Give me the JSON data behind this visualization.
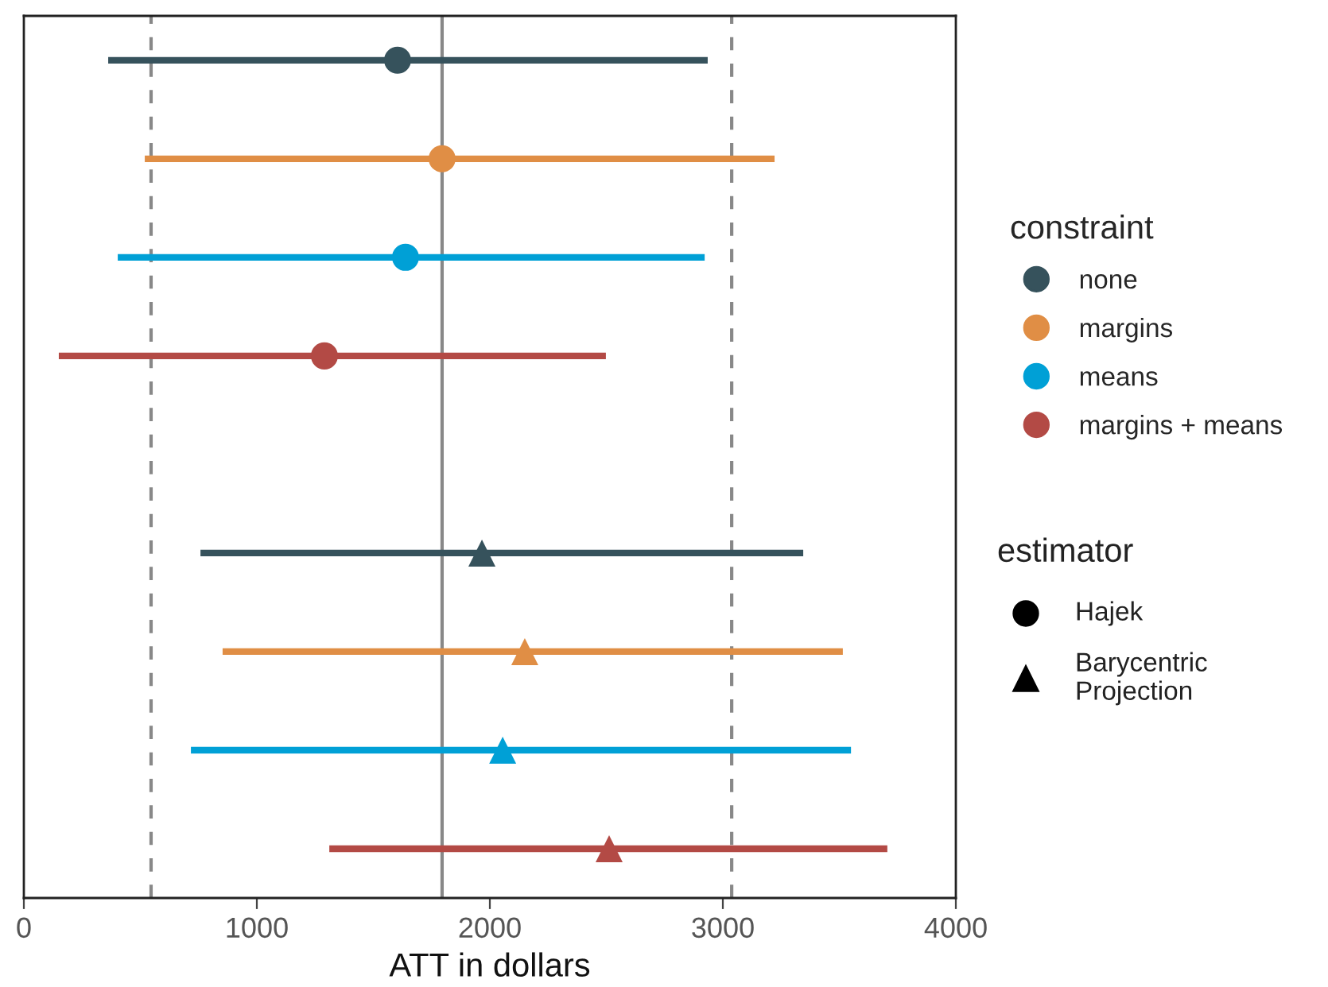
{
  "chart_data": {
    "type": "scatter",
    "orientation": "horizontal",
    "xlabel": "ATT in dollars",
    "categories": [
      null,
      null,
      null,
      null,
      null,
      null,
      null,
      null,
      null
    ],
    "legend_title": [
      "constraint",
      "estimator"
    ],
    "annotations": [
      "Hajek",
      "Barycentric\nProjection"
    ],
    "series": [
      {
        "name": "none",
        "marker": "circle",
        "color": "#36525c",
        "values": [
          1604,
          null,
          null,
          null,
          null,
          null,
          null,
          null,
          null
        ],
        "errors": [
          [
            362,
            2935
          ],
          null,
          null,
          null,
          null,
          null,
          null,
          null,
          null
        ]
      },
      {
        "name": "margins",
        "marker": "circle",
        "color": "#e08e45",
        "values": [
          null,
          1795,
          null,
          null,
          null,
          null,
          null,
          null,
          null
        ],
        "errors": [
          null,
          [
            519,
            3222
          ],
          null,
          null,
          null,
          null,
          null,
          null,
          null
        ]
      },
      {
        "name": "means",
        "marker": "circle",
        "color": "#00a0d6",
        "values": [
          null,
          null,
          1638,
          null,
          null,
          null,
          null,
          null,
          null
        ],
        "errors": [
          null,
          null,
          [
            403,
            2922
          ],
          null,
          null,
          null,
          null,
          null,
          null
        ]
      },
      {
        "name": "margins + means",
        "marker": "circle",
        "color": "#b34a45",
        "values": [
          null,
          null,
          null,
          1290,
          null,
          null,
          null,
          null,
          null
        ],
        "errors": [
          null,
          null,
          null,
          [
            150,
            2498
          ],
          null,
          null,
          null,
          null,
          null
        ]
      },
      {
        "marker": "triangle",
        "color": "#36525c",
        "values": [
          null,
          null,
          null,
          null,
          null,
          1966,
          null,
          null,
          null
        ],
        "errors": [
          null,
          null,
          null,
          null,
          null,
          [
            758,
            3345
          ],
          null,
          null,
          null
        ]
      },
      {
        "marker": "triangle",
        "color": "#e08e45",
        "values": [
          null,
          null,
          null,
          null,
          null,
          null,
          2150,
          null,
          null
        ],
        "errors": [
          null,
          null,
          null,
          null,
          null,
          null,
          [
            853,
            3515
          ],
          null,
          null
        ]
      },
      {
        "marker": "triangle",
        "color": "#00a0d6",
        "values": [
          null,
          null,
          null,
          null,
          null,
          null,
          null,
          2055,
          null
        ],
        "errors": [
          null,
          null,
          null,
          null,
          null,
          null,
          null,
          [
            717,
            3550
          ],
          null
        ]
      },
      {
        "marker": "triangle",
        "color": "#b34a45",
        "values": [
          null,
          null,
          null,
          null,
          null,
          null,
          null,
          null,
          2512
        ],
        "errors": [
          null,
          null,
          null,
          null,
          null,
          null,
          null,
          null,
          [
            1311,
            3706
          ]
        ]
      }
    ],
    "xlim": [
      0,
      4000
    ],
    "xticks": [
      0,
      1000,
      2000,
      3000,
      4000
    ],
    "ref_lines": [
      {
        "axis": "x",
        "value": 546,
        "color": "#888888",
        "line_style": "dashed"
      },
      {
        "axis": "x",
        "value": 1795,
        "color": "#888888",
        "line_style": "solid"
      },
      {
        "axis": "x",
        "value": 3038,
        "color": "#888888",
        "line_style": "dashed"
      }
    ],
    "grid": false,
    "legend": "right",
    "tick_labels": "x"
  }
}
